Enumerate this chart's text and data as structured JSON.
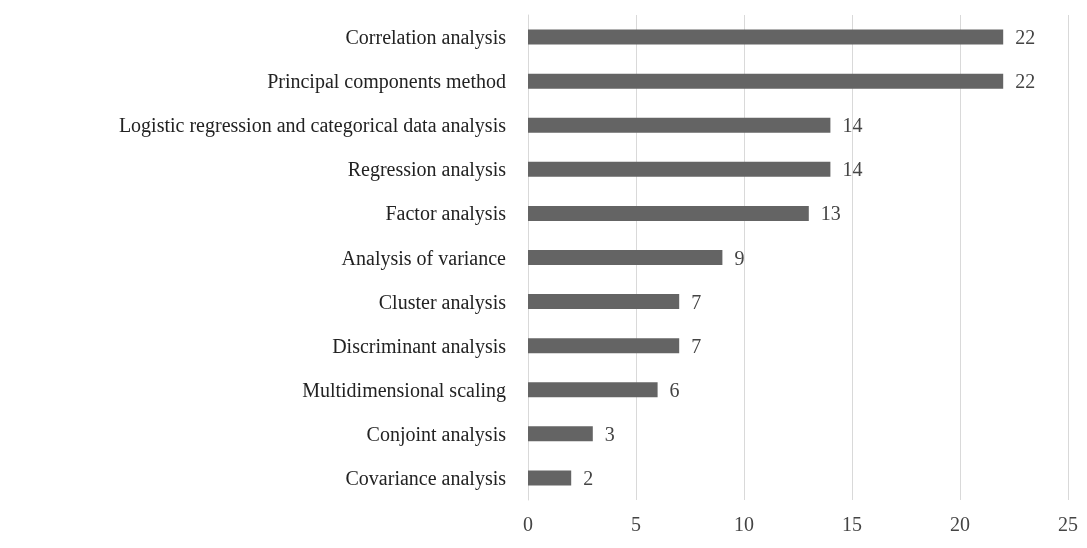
{
  "chart_data": {
    "type": "bar",
    "orientation": "horizontal",
    "categories": [
      "Correlation analysis",
      "Principal components method",
      "Logistic regression and categorical data analysis",
      "Regression analysis",
      "Factor analysis",
      "Analysis of variance",
      "Cluster analysis",
      "Discriminant analysis",
      "Multidimensional scaling",
      "Conjoint analysis",
      "Covariance analysis"
    ],
    "values": [
      22,
      22,
      14,
      14,
      13,
      9,
      7,
      7,
      6,
      3,
      2
    ],
    "color": "#646464",
    "xlim": [
      0,
      25
    ],
    "xticks": [
      0,
      5,
      10,
      15,
      20,
      25
    ],
    "grid": "x",
    "data_labels": true
  }
}
